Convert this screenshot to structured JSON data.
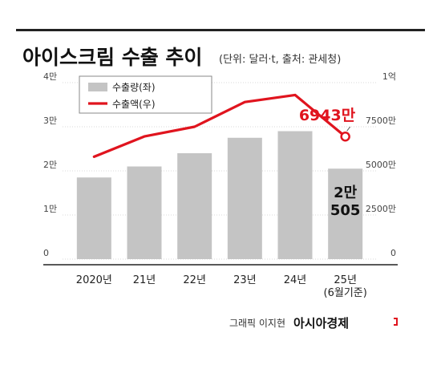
{
  "header": {
    "title": "아이스크림 수출 추이",
    "subtitle": "(단위: 달러·t, 출처: 관세청)"
  },
  "footer": {
    "credit": "그래픽 이지현",
    "brand": "아시아경제"
  },
  "colors": {
    "bar": "#c4c4c4",
    "line": "#e0141e",
    "text": "#222222",
    "grid": "#d9d9d9"
  },
  "chart_data": {
    "type": "bar",
    "categories": [
      "2020년",
      "21년",
      "22년",
      "23년",
      "24년",
      "25년|(6월기준)"
    ],
    "left_axis": {
      "ylim": [
        0,
        40000
      ],
      "ticks": [
        "0",
        "1만",
        "2만",
        "3만",
        "4만"
      ]
    },
    "right_axis": {
      "ylim": [
        0,
        100000000
      ],
      "ticks": [
        "0",
        "2500만",
        "5000만",
        "7500만",
        "1억"
      ]
    },
    "series": [
      {
        "name": "수출량(좌)",
        "type": "bar",
        "axis": "left",
        "values": [
          18500,
          21000,
          24000,
          27500,
          29000,
          20505
        ]
      },
      {
        "name": "수출액(우)",
        "type": "line",
        "axis": "right",
        "values": [
          58000000,
          69500000,
          75000000,
          89000000,
          93000000,
          69430000
        ]
      }
    ],
    "annotations": {
      "last_line_value": "6943만",
      "last_bar_value": "2만|505"
    }
  }
}
